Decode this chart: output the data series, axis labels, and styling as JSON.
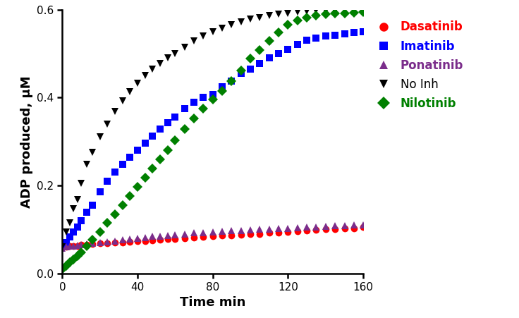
{
  "title": "",
  "xlabel": "Time min",
  "ylabel": "ADP produced, μM",
  "xlim": [
    0,
    160
  ],
  "ylim": [
    0,
    0.6
  ],
  "yticks": [
    0.0,
    0.2,
    0.4,
    0.6
  ],
  "xticks": [
    0,
    40,
    80,
    120,
    160
  ],
  "dasatinib": {
    "color": "#ff0000",
    "marker": "o",
    "label": "Dasatinib",
    "x": [
      0,
      2,
      4,
      6,
      8,
      10,
      13,
      16,
      20,
      24,
      28,
      32,
      36,
      40,
      44,
      48,
      52,
      56,
      60,
      65,
      70,
      75,
      80,
      85,
      90,
      95,
      100,
      105,
      110,
      115,
      120,
      125,
      130,
      135,
      140,
      145,
      150,
      155,
      160
    ],
    "y": [
      0.06,
      0.06,
      0.062,
      0.063,
      0.063,
      0.065,
      0.066,
      0.067,
      0.068,
      0.068,
      0.07,
      0.07,
      0.072,
      0.073,
      0.074,
      0.075,
      0.077,
      0.078,
      0.079,
      0.08,
      0.082,
      0.083,
      0.085,
      0.086,
      0.087,
      0.088,
      0.089,
      0.09,
      0.092,
      0.093,
      0.095,
      0.096,
      0.098,
      0.099,
      0.1,
      0.101,
      0.102,
      0.103,
      0.105
    ]
  },
  "imatinib": {
    "color": "#0000ff",
    "marker": "s",
    "label": "Imatinib",
    "x": [
      0,
      2,
      4,
      6,
      8,
      10,
      13,
      16,
      20,
      24,
      28,
      32,
      36,
      40,
      44,
      48,
      52,
      56,
      60,
      65,
      70,
      75,
      80,
      85,
      90,
      95,
      100,
      105,
      110,
      115,
      120,
      125,
      130,
      135,
      140,
      145,
      150,
      155,
      160
    ],
    "y": [
      0.063,
      0.07,
      0.083,
      0.095,
      0.105,
      0.12,
      0.14,
      0.155,
      0.185,
      0.21,
      0.23,
      0.248,
      0.265,
      0.28,
      0.297,
      0.313,
      0.328,
      0.342,
      0.356,
      0.375,
      0.39,
      0.4,
      0.407,
      0.425,
      0.438,
      0.455,
      0.465,
      0.478,
      0.49,
      0.5,
      0.51,
      0.52,
      0.53,
      0.535,
      0.54,
      0.542,
      0.545,
      0.548,
      0.55
    ]
  },
  "ponatinib": {
    "color": "#7b2d8b",
    "marker": "^",
    "label": "Ponatinib",
    "x": [
      0,
      2,
      4,
      6,
      8,
      10,
      13,
      16,
      20,
      24,
      28,
      32,
      36,
      40,
      44,
      48,
      52,
      56,
      60,
      65,
      70,
      75,
      80,
      85,
      90,
      95,
      100,
      105,
      110,
      115,
      120,
      125,
      130,
      135,
      140,
      145,
      150,
      155,
      160
    ],
    "y": [
      0.058,
      0.06,
      0.062,
      0.063,
      0.064,
      0.065,
      0.067,
      0.068,
      0.07,
      0.072,
      0.074,
      0.076,
      0.078,
      0.08,
      0.082,
      0.084,
      0.085,
      0.087,
      0.088,
      0.09,
      0.092,
      0.093,
      0.094,
      0.096,
      0.097,
      0.098,
      0.099,
      0.1,
      0.101,
      0.102,
      0.103,
      0.104,
      0.105,
      0.106,
      0.107,
      0.108,
      0.109,
      0.11,
      0.111
    ]
  },
  "no_inh": {
    "color": "#000000",
    "marker": "v",
    "label": "No Inh",
    "x": [
      0,
      2,
      4,
      6,
      8,
      10,
      13,
      16,
      20,
      24,
      28,
      32,
      36,
      40,
      44,
      48,
      52,
      56,
      60,
      65,
      70,
      75,
      80,
      85,
      90,
      95,
      100,
      105,
      110,
      115,
      120,
      125,
      130,
      135,
      140,
      145,
      150,
      155,
      160
    ],
    "y": [
      0.06,
      0.095,
      0.115,
      0.148,
      0.168,
      0.205,
      0.248,
      0.275,
      0.31,
      0.34,
      0.368,
      0.392,
      0.413,
      0.432,
      0.45,
      0.465,
      0.478,
      0.49,
      0.5,
      0.515,
      0.528,
      0.54,
      0.55,
      0.558,
      0.565,
      0.572,
      0.578,
      0.582,
      0.586,
      0.589,
      0.592,
      0.594,
      0.596,
      0.597,
      0.598,
      0.598,
      0.599,
      0.599,
      0.599
    ]
  },
  "nilotinib": {
    "color": "#008000",
    "marker": "D",
    "label": "Nilotinib",
    "x": [
      0,
      2,
      4,
      6,
      8,
      10,
      13,
      16,
      20,
      24,
      28,
      32,
      36,
      40,
      44,
      48,
      52,
      56,
      60,
      65,
      70,
      75,
      80,
      85,
      90,
      95,
      100,
      105,
      110,
      115,
      120,
      125,
      130,
      135,
      140,
      145,
      150,
      155,
      160
    ],
    "y": [
      0.01,
      0.018,
      0.025,
      0.032,
      0.04,
      0.048,
      0.062,
      0.077,
      0.095,
      0.115,
      0.135,
      0.155,
      0.176,
      0.197,
      0.218,
      0.238,
      0.26,
      0.28,
      0.302,
      0.328,
      0.352,
      0.375,
      0.395,
      0.415,
      0.438,
      0.462,
      0.488,
      0.508,
      0.528,
      0.548,
      0.565,
      0.575,
      0.582,
      0.586,
      0.589,
      0.591,
      0.592,
      0.593,
      0.594
    ]
  },
  "legend_labels": [
    "Dasatinib",
    "Imatinib",
    "Ponatinib",
    "No Inh",
    "Nilotinib"
  ],
  "legend_markers": [
    "o",
    "s",
    "^",
    "v",
    "D"
  ],
  "legend_colors": [
    "#ff0000",
    "#0000ff",
    "#7b2d8b",
    "#000000",
    "#008000"
  ],
  "legend_bold": [
    true,
    true,
    true,
    false,
    true
  ],
  "markersize": 7,
  "background_color": "#ffffff"
}
